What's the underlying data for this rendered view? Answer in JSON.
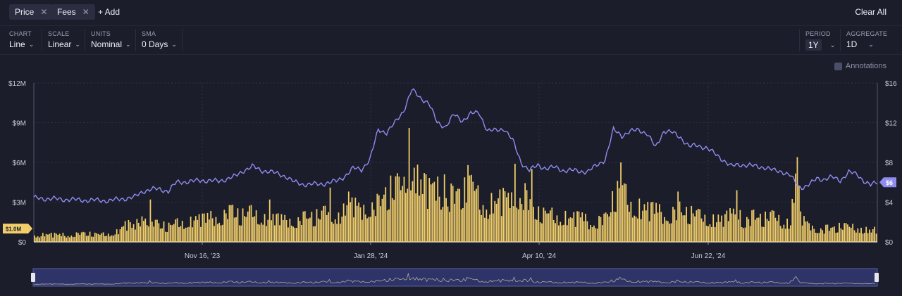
{
  "toolbar": {
    "chips": [
      "Price",
      "Fees"
    ],
    "add_label": "+ Add",
    "clear_label": "Clear All"
  },
  "controls": {
    "chart": {
      "label": "CHART",
      "value": "Line"
    },
    "scale": {
      "label": "SCALE",
      "value": "Linear"
    },
    "units": {
      "label": "UNITS",
      "value": "Nominal"
    },
    "sma": {
      "label": "SMA",
      "value": "0 Days"
    },
    "period": {
      "label": "PERIOD",
      "value": "1Y"
    },
    "aggregate": {
      "label": "AGGREGATE",
      "value": "1D"
    }
  },
  "annotations_label": "Annotations",
  "colors": {
    "background": "#1b1d2a",
    "price": "#8f8cf0",
    "fees": "#f1ce6b",
    "grid": "#2f3246",
    "navigator": "#2e3468"
  },
  "chart_data": {
    "type": "line",
    "x_start": "Sep 14, '23",
    "x_end": "Sep 13, '24",
    "x_ticks": [
      "Nov 16, '23",
      "Jan 28, '24",
      "Apr 10, '24",
      "Jun 22, '24"
    ],
    "y_left": {
      "ticks": [
        "$0",
        "$3M",
        "$6M",
        "$9M",
        "$12M"
      ],
      "range": [
        0,
        12
      ]
    },
    "y_right": {
      "ticks": [
        "$0",
        "$4",
        "$8",
        "$12",
        "$16"
      ],
      "range": [
        0,
        16
      ]
    },
    "grid": true,
    "left_badge": "$1.0M",
    "right_badge": "$6",
    "series": [
      {
        "name": "Price",
        "axis": "right",
        "points": [
          [
            0,
            4.4
          ],
          [
            15,
            4.3
          ],
          [
            30,
            4.2
          ],
          [
            45,
            4.15
          ],
          [
            60,
            4.5
          ],
          [
            65,
            5.1
          ],
          [
            70,
            5.3
          ],
          [
            75,
            5.3
          ],
          [
            80,
            5.1
          ],
          [
            85,
            6.0
          ],
          [
            95,
            6.1
          ],
          [
            100,
            6.2
          ],
          [
            110,
            6.1
          ],
          [
            120,
            6.6
          ],
          [
            125,
            7.2
          ],
          [
            130,
            7.6
          ],
          [
            135,
            7.2
          ],
          [
            140,
            7.1
          ],
          [
            150,
            6.6
          ],
          [
            155,
            6.0
          ],
          [
            160,
            5.8
          ],
          [
            170,
            5.8
          ],
          [
            180,
            6.1
          ],
          [
            185,
            6.6
          ],
          [
            190,
            7.4
          ],
          [
            195,
            7.3
          ],
          [
            200,
            8.3
          ],
          [
            205,
            11.3
          ],
          [
            210,
            11.0
          ],
          [
            215,
            12.0
          ],
          [
            220,
            13.2
          ],
          [
            225,
            15.3
          ],
          [
            230,
            14.5
          ],
          [
            235,
            14.0
          ],
          [
            240,
            12.0
          ],
          [
            245,
            11.6
          ],
          [
            250,
            12.8
          ],
          [
            255,
            12.2
          ],
          [
            260,
            12.9
          ],
          [
            265,
            13.0
          ],
          [
            270,
            11.2
          ],
          [
            275,
            11.2
          ],
          [
            280,
            11.4
          ],
          [
            285,
            10.2
          ],
          [
            290,
            8.0
          ],
          [
            295,
            7.2
          ],
          [
            300,
            7.7
          ],
          [
            305,
            7.4
          ],
          [
            310,
            7.5
          ],
          [
            315,
            7.2
          ],
          [
            320,
            7.2
          ],
          [
            325,
            7.1
          ],
          [
            330,
            7.1
          ],
          [
            335,
            7.7
          ],
          [
            340,
            8.3
          ],
          [
            345,
            11.3
          ],
          [
            350,
            10.7
          ],
          [
            355,
            11.1
          ],
          [
            360,
            11.3
          ],
          [
            365,
            10.9
          ],
          [
            370,
            9.5
          ],
          [
            375,
            11.2
          ],
          [
            380,
            11.0
          ],
          [
            385,
            10.5
          ],
          [
            390,
            9.6
          ],
          [
            395,
            9.7
          ],
          [
            400,
            9.5
          ],
          [
            405,
            8.9
          ],
          [
            410,
            8.3
          ],
          [
            415,
            7.6
          ],
          [
            420,
            7.8
          ],
          [
            425,
            7.7
          ],
          [
            430,
            7.6
          ],
          [
            435,
            7.5
          ],
          [
            440,
            7.2
          ],
          [
            445,
            7.1
          ],
          [
            450,
            6.7
          ],
          [
            455,
            5.6
          ],
          [
            458,
            5.5
          ],
          [
            462,
            5.8
          ],
          [
            466,
            6.4
          ],
          [
            470,
            6.3
          ],
          [
            475,
            6.5
          ],
          [
            480,
            6.2
          ],
          [
            485,
            7.0
          ],
          [
            490,
            6.8
          ],
          [
            495,
            6.0
          ],
          [
            498,
            5.7
          ],
          [
            502,
            6.0
          ]
        ]
      },
      {
        "name": "Fees",
        "axis": "left",
        "segments": [
          [
            0,
            0.6
          ],
          [
            20,
            0.6
          ],
          [
            30,
            0.7
          ],
          [
            40,
            0.6
          ],
          [
            50,
            0.9
          ],
          [
            55,
            1.5
          ],
          [
            60,
            1.2
          ],
          [
            65,
            2.7
          ],
          [
            70,
            1.6
          ],
          [
            75,
            1.4
          ],
          [
            80,
            1.3
          ],
          [
            90,
            1.8
          ],
          [
            100,
            1.9
          ],
          [
            110,
            2.2
          ],
          [
            115,
            2.5
          ],
          [
            120,
            2.3
          ],
          [
            125,
            2.2
          ],
          [
            130,
            2.5
          ],
          [
            140,
            2.0
          ],
          [
            150,
            1.8
          ],
          [
            160,
            2.0
          ],
          [
            170,
            2.2
          ],
          [
            175,
            2.6
          ],
          [
            180,
            2.4
          ],
          [
            185,
            2.6
          ],
          [
            190,
            3.0
          ],
          [
            195,
            2.6
          ],
          [
            200,
            3.4
          ],
          [
            205,
            3.1
          ],
          [
            210,
            4.2
          ],
          [
            215,
            4.6
          ],
          [
            220,
            4.5
          ],
          [
            223,
            8.6
          ],
          [
            225,
            5.5
          ],
          [
            230,
            4.8
          ],
          [
            235,
            4.2
          ],
          [
            240,
            4.6
          ],
          [
            245,
            4.0
          ],
          [
            250,
            3.8
          ],
          [
            255,
            4.2
          ],
          [
            260,
            4.6
          ],
          [
            265,
            3.6
          ],
          [
            270,
            3.1
          ],
          [
            275,
            3.4
          ],
          [
            280,
            3.6
          ],
          [
            285,
            3.3
          ],
          [
            290,
            4.6
          ],
          [
            295,
            3.1
          ],
          [
            300,
            2.4
          ],
          [
            305,
            2.2
          ],
          [
            310,
            2.3
          ],
          [
            315,
            2.1
          ],
          [
            320,
            2.0
          ],
          [
            325,
            2.1
          ],
          [
            330,
            1.7
          ],
          [
            335,
            1.8
          ],
          [
            340,
            2.0
          ],
          [
            345,
            3.9
          ],
          [
            350,
            4.2
          ],
          [
            355,
            3.2
          ],
          [
            360,
            3.0
          ],
          [
            365,
            2.8
          ],
          [
            370,
            2.6
          ],
          [
            375,
            2.3
          ],
          [
            380,
            2.6
          ],
          [
            385,
            2.7
          ],
          [
            390,
            2.4
          ],
          [
            395,
            2.2
          ],
          [
            400,
            2.0
          ],
          [
            405,
            2.0
          ],
          [
            410,
            1.9
          ],
          [
            415,
            2.3
          ],
          [
            420,
            1.8
          ],
          [
            425,
            2.0
          ],
          [
            430,
            2.2
          ],
          [
            435,
            2.0
          ],
          [
            440,
            2.1
          ],
          [
            445,
            1.8
          ],
          [
            450,
            1.8
          ],
          [
            454,
            6.4
          ],
          [
            456,
            2.0
          ],
          [
            460,
            1.4
          ],
          [
            465,
            1.2
          ],
          [
            470,
            1.1
          ],
          [
            475,
            1.2
          ],
          [
            480,
            1.3
          ],
          [
            485,
            1.2
          ],
          [
            490,
            1.3
          ],
          [
            495,
            1.0
          ],
          [
            502,
            1.0
          ]
        ],
        "spikes": [
          [
            69,
            3.2
          ],
          [
            118,
            2.8
          ],
          [
            140,
            3.2
          ],
          [
            176,
            4.1
          ],
          [
            187,
            3.8
          ],
          [
            226,
            5.6
          ],
          [
            232,
            5.2
          ],
          [
            244,
            5.1
          ],
          [
            258,
            5.8
          ],
          [
            286,
            5.9
          ],
          [
            296,
            5.5
          ],
          [
            349,
            6.0
          ],
          [
            383,
            3.8
          ],
          [
            418,
            3.9
          ],
          [
            420,
            2.4
          ]
        ]
      }
    ]
  }
}
